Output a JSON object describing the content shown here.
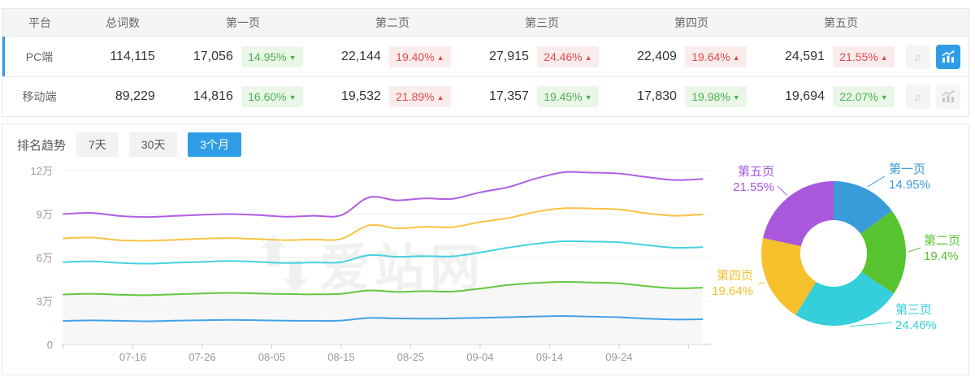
{
  "table": {
    "header": {
      "platform": "平台",
      "total": "总词数",
      "pages": [
        "第一页",
        "第二页",
        "第三页",
        "第四页",
        "第五页"
      ]
    },
    "rows": [
      {
        "platform": "PC端",
        "total": "114,115",
        "active": true,
        "chart_active": true,
        "pages": [
          {
            "count": "17,056",
            "pct": "14.95%",
            "dir": "down"
          },
          {
            "count": "22,144",
            "pct": "19.40%",
            "dir": "up"
          },
          {
            "count": "27,915",
            "pct": "24.46%",
            "dir": "up"
          },
          {
            "count": "22,409",
            "pct": "19.64%",
            "dir": "up"
          },
          {
            "count": "24,591",
            "pct": "21.55%",
            "dir": "up"
          }
        ]
      },
      {
        "platform": "移动端",
        "total": "89,229",
        "active": false,
        "chart_active": false,
        "pages": [
          {
            "count": "14,816",
            "pct": "16.60%",
            "dir": "down"
          },
          {
            "count": "19,532",
            "pct": "21.89%",
            "dir": "up"
          },
          {
            "count": "17,357",
            "pct": "19.45%",
            "dir": "down"
          },
          {
            "count": "17,830",
            "pct": "19.98%",
            "dir": "down"
          },
          {
            "count": "19,694",
            "pct": "22.07%",
            "dir": "down"
          }
        ]
      }
    ]
  },
  "trend_section": {
    "title": "排名趋势",
    "tabs": [
      {
        "label": "7天",
        "active": false
      },
      {
        "label": "30天",
        "active": false
      },
      {
        "label": "3个月",
        "active": true
      }
    ]
  },
  "watermark_text": "爱站网",
  "icons": {
    "swap_glyph": "↓↑",
    "up_arrow": "▲",
    "down_arrow": "▼"
  },
  "colors": {
    "accent_blue": "#2E9DE6",
    "badge_up_text": "#E24C4C",
    "badge_up_bg": "#FBECEC",
    "badge_down_text": "#4DB151",
    "badge_down_bg": "#EAF7E8",
    "area_fill": "#F7F7F7",
    "grid_line": "#EFEFEF",
    "axis_line": "#CCCCCC",
    "tick_text": "#999999"
  },
  "chart_data": [
    {
      "type": "line",
      "title": "排名趋势 (3个月)",
      "x_tick_labels": [
        "07-16",
        "07-26",
        "08-05",
        "08-15",
        "08-25",
        "09-04",
        "09-14",
        "09-24"
      ],
      "x_tick_days": [
        10,
        20,
        30,
        40,
        50,
        60,
        70,
        80
      ],
      "x_minor_tick_step": 10,
      "x_domain_days": [
        0,
        93
      ],
      "y_unit": "万",
      "y_ticks": [
        {
          "label": "0",
          "value": 0
        },
        {
          "label": "3万",
          "value": 3
        },
        {
          "label": "6万",
          "value": 6
        },
        {
          "label": "9万",
          "value": 9
        },
        {
          "label": "12万",
          "value": 12
        }
      ],
      "ylim_wan": [
        0,
        12.6
      ],
      "grid": "horizontal",
      "legend": "none",
      "cumulative_stacked": true,
      "sample_days": [
        0,
        4,
        8,
        12,
        16,
        20,
        24,
        28,
        32,
        36,
        40,
        44,
        48,
        52,
        56,
        60,
        64,
        68,
        72,
        76,
        80,
        84,
        88,
        92
      ],
      "series": [
        {
          "name": "第一页",
          "color": "#43A3E6",
          "area": false,
          "values_wan": [
            1.62,
            1.66,
            1.63,
            1.6,
            1.64,
            1.67,
            1.7,
            1.67,
            1.64,
            1.63,
            1.65,
            1.83,
            1.8,
            1.78,
            1.8,
            1.84,
            1.88,
            1.93,
            1.96,
            1.92,
            1.88,
            1.78,
            1.72,
            1.74
          ]
        },
        {
          "name": "第二页",
          "color": "#62C83E",
          "area": true,
          "area_color": "#F7F7F7",
          "values_wan": [
            3.45,
            3.5,
            3.44,
            3.4,
            3.46,
            3.52,
            3.56,
            3.52,
            3.48,
            3.46,
            3.5,
            3.73,
            3.63,
            3.68,
            3.65,
            3.85,
            4.1,
            4.25,
            4.32,
            4.28,
            4.22,
            4.02,
            3.88,
            3.92
          ]
        },
        {
          "name": "第三页",
          "color": "#45D2DE",
          "area": false,
          "values_wan": [
            5.68,
            5.74,
            5.63,
            5.58,
            5.64,
            5.7,
            5.76,
            5.7,
            5.62,
            5.66,
            5.68,
            6.16,
            6.05,
            6.1,
            6.08,
            6.35,
            6.68,
            6.95,
            7.12,
            7.1,
            7.05,
            6.85,
            6.68,
            6.71
          ]
        },
        {
          "name": "第四页",
          "color": "#F7C443",
          "area": false,
          "values_wan": [
            7.32,
            7.38,
            7.2,
            7.16,
            7.22,
            7.3,
            7.34,
            7.28,
            7.2,
            7.25,
            7.28,
            8.22,
            8.02,
            8.12,
            8.1,
            8.45,
            8.72,
            9.15,
            9.4,
            9.38,
            9.32,
            9.05,
            8.88,
            8.97
          ]
        },
        {
          "name": "第五页",
          "color": "#B05FE3",
          "area": false,
          "values_wan": [
            9.0,
            9.08,
            8.87,
            8.8,
            8.87,
            8.95,
            9.0,
            8.93,
            8.82,
            8.88,
            8.92,
            10.15,
            9.95,
            10.08,
            10.05,
            10.5,
            10.85,
            11.45,
            11.88,
            11.86,
            11.8,
            11.55,
            11.35,
            11.42
          ]
        }
      ]
    },
    {
      "type": "pie",
      "donut": true,
      "slices": [
        {
          "label": "第一页",
          "value": 14.95,
          "display": "14.95%",
          "color": "#3A9BDB"
        },
        {
          "label": "第二页",
          "value": 19.4,
          "display": "19.4%",
          "color": "#56C32F"
        },
        {
          "label": "第三页",
          "value": 24.46,
          "display": "24.46%",
          "color": "#35CEDB"
        },
        {
          "label": "第四页",
          "value": 19.64,
          "display": "19.64%",
          "color": "#F5C02B"
        },
        {
          "label": "第五页",
          "value": 21.55,
          "display": "21.55%",
          "color": "#A958DB"
        }
      ]
    }
  ]
}
